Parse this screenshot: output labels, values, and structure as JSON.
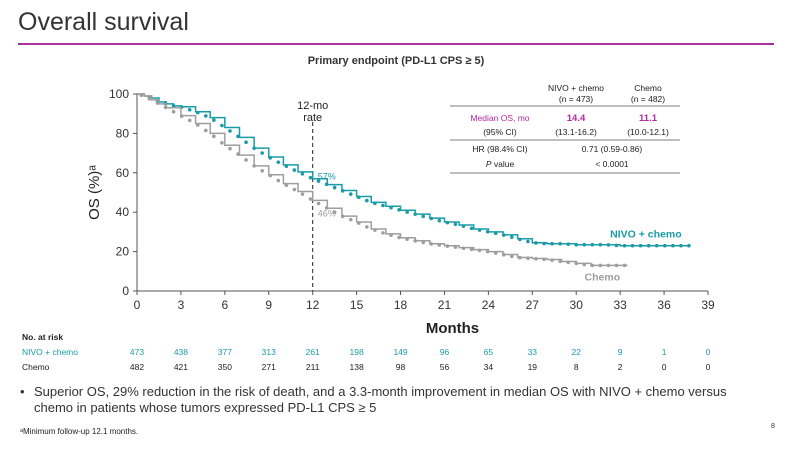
{
  "slide": {
    "title": "Overall survival",
    "bullet": "Superior OS, 29% reduction in the risk of death, and a 3.3-month improvement in median OS with NIVO + chemo versus chemo in patients whose tumors expressed PD-L1 CPS ≥ 5",
    "footnote": "ᵃMinimum follow-up 12.1 months.",
    "page_number": "8"
  },
  "colors": {
    "accent": "#a8329e",
    "nivo": "#1a9ba8",
    "chemo": "#9e9e9e",
    "median_text": "#b5289e"
  },
  "chart_data": {
    "type": "line",
    "title": "Primary endpoint (PD-L1 CPS ≥ 5)",
    "xlabel": "Months",
    "ylabel": "OS (%)ᵃ",
    "xlim": [
      0,
      39
    ],
    "ylim": [
      0,
      100
    ],
    "x_ticks": [
      0,
      3,
      6,
      9,
      12,
      15,
      18,
      21,
      24,
      27,
      30,
      33,
      36,
      39
    ],
    "y_ticks": [
      0,
      20,
      40,
      60,
      80,
      100
    ],
    "grid": false,
    "landmark": {
      "x": 12,
      "label": "12-mo rate"
    },
    "annotations": [
      {
        "series": "NIVO + chemo",
        "x": 12,
        "y": 57,
        "text": "57%"
      },
      {
        "series": "Chemo",
        "x": 12,
        "y": 46,
        "text": "46%"
      }
    ],
    "series": [
      {
        "name": "NIVO + chemo",
        "color": "#1a9ba8",
        "x": [
          0,
          0.5,
          1,
          1.5,
          2,
          2.5,
          3,
          4,
          5,
          6,
          7,
          8,
          9,
          10,
          11,
          12,
          13,
          14,
          15,
          16,
          17,
          18,
          19,
          20,
          21,
          22,
          23,
          24,
          25,
          26,
          27,
          28,
          29,
          30,
          31,
          32,
          33,
          34,
          35,
          36,
          37,
          37.7
        ],
        "y": [
          100,
          99,
          98,
          96,
          95,
          94,
          93.5,
          91,
          88,
          83,
          78,
          72.5,
          68,
          64,
          60.5,
          57,
          54,
          51,
          48,
          45,
          43,
          41,
          39,
          37,
          35,
          33.5,
          31.5,
          30,
          28.5,
          26.5,
          24.5,
          24,
          24,
          23.5,
          23.5,
          23.5,
          23,
          23,
          23,
          23,
          23,
          23
        ]
      },
      {
        "name": "Chemo",
        "color": "#9e9e9e",
        "x": [
          0,
          0.5,
          1,
          1.5,
          2,
          3,
          4,
          5,
          6,
          7,
          8,
          9,
          10,
          11,
          12,
          13,
          14,
          15,
          16,
          17,
          18,
          19,
          20,
          21,
          22,
          23,
          24,
          25,
          26,
          27,
          28,
          29,
          30,
          31,
          32,
          33,
          33.5
        ],
        "y": [
          100,
          99,
          97,
          95,
          93,
          89,
          85,
          80,
          74,
          69,
          63.5,
          59,
          54.5,
          50.5,
          46,
          42,
          38,
          35,
          31.5,
          29,
          27,
          25.5,
          24,
          23,
          22,
          21,
          20,
          18.5,
          17,
          16.5,
          16,
          15,
          14,
          13,
          13,
          13,
          13
        ]
      }
    ],
    "legend_labels": [
      {
        "text": "NIVO + chemo",
        "color": "#1a9ba8"
      },
      {
        "text": "Chemo",
        "color": "#9e9e9e"
      }
    ],
    "stats_table": {
      "col_headers": [
        [
          "NIVO + chemo",
          "(n = 473)"
        ],
        [
          "Chemo",
          "(n = 482)"
        ]
      ],
      "rows": [
        {
          "label": "Median OS, mo",
          "values": [
            "14.4",
            "11.1"
          ],
          "highlight": true
        },
        {
          "label": "(95% CI)",
          "values": [
            "(13.1-16.2)",
            "(10.0-12.1)"
          ]
        },
        {
          "label": "HR (98.4% CI)",
          "value": "0.71 (0.59-0.86)"
        },
        {
          "label": "P value",
          "value": "< 0.0001",
          "italic_prefix": "P"
        }
      ]
    },
    "at_risk": {
      "heading": "No. at risk",
      "rows": [
        {
          "label": "NIVO + chemo",
          "color": "#1a9ba8",
          "values": [
            473,
            438,
            377,
            313,
            261,
            198,
            149,
            96,
            65,
            33,
            22,
            9,
            1,
            0
          ]
        },
        {
          "label": "Chemo",
          "color": "#222222",
          "values": [
            482,
            421,
            350,
            271,
            211,
            138,
            98,
            56,
            34,
            19,
            8,
            2,
            0,
            0
          ]
        }
      ]
    }
  }
}
